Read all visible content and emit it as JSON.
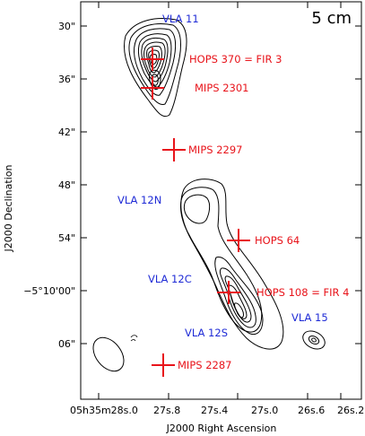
{
  "panel": {
    "band_label": "5 cm",
    "x_axis_label": "J2000 Right Ascension",
    "y_axis_label": "J2000 Declination"
  },
  "y_ticks": [
    {
      "label": "30\""
    },
    {
      "label": "36\""
    },
    {
      "label": "42\""
    },
    {
      "label": "48\""
    },
    {
      "label": "54\""
    },
    {
      "label": "−5°10'00\""
    },
    {
      "label": "06\""
    }
  ],
  "x_ticks": [
    {
      "label": "05h35m28s.0"
    },
    {
      "label": "27s.8"
    },
    {
      "label": "27s.4"
    },
    {
      "label": "27s.0"
    },
    {
      "label": "26s.6"
    },
    {
      "label": "26s.2"
    }
  ],
  "sources": [
    {
      "label": "HOPS 370 = FIR 3",
      "color": "#e8141b"
    },
    {
      "label": "MIPS 2301",
      "color": "#e8141b"
    },
    {
      "label": "MIPS 2297",
      "color": "#e8141b"
    },
    {
      "label": "HOPS 64",
      "color": "#e8141b"
    },
    {
      "label": "HOPS 108 = FIR 4",
      "color": "#e8141b"
    },
    {
      "label": "MIPS 2287",
      "color": "#e8141b"
    }
  ],
  "vla_labels": [
    {
      "label": "VLA 11",
      "color": "#1f2bd6"
    },
    {
      "label": "VLA 12N",
      "color": "#1f2bd6"
    },
    {
      "label": "VLA 12C",
      "color": "#1f2bd6"
    },
    {
      "label": "VLA 12S",
      "color": "#1f2bd6"
    },
    {
      "label": "VLA 15",
      "color": "#1f2bd6"
    }
  ]
}
